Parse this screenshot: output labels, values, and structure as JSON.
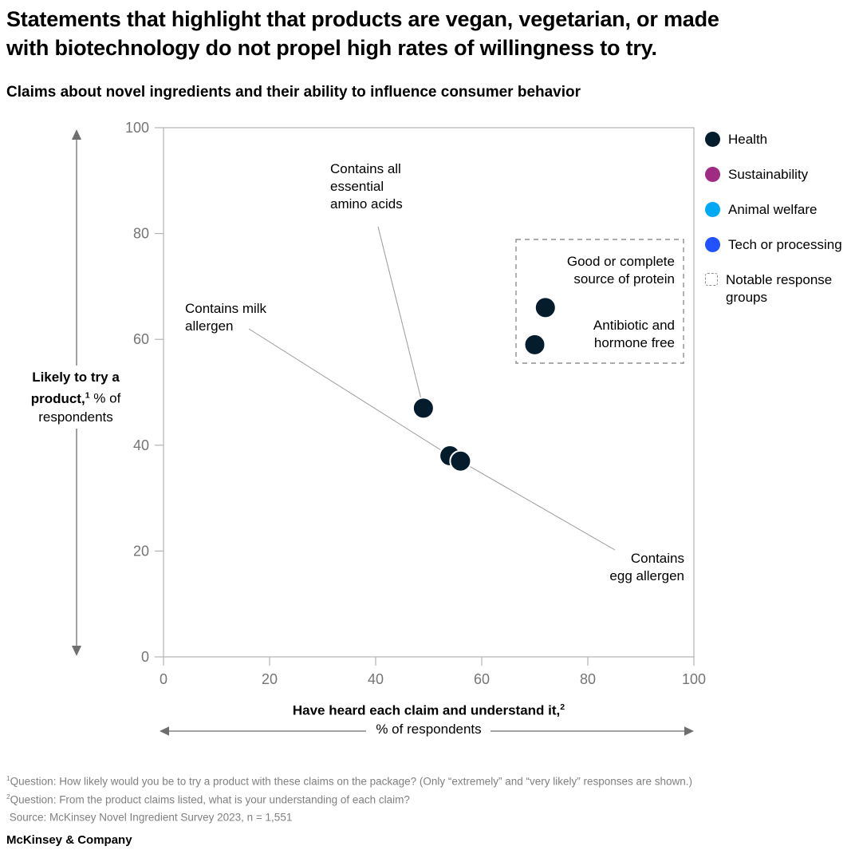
{
  "header": {
    "title": "Statements that highlight that products are vegan, vegetarian, or made\nwith biotechnology do not propel high rates of willingness to try.",
    "subtitle": "Claims about novel ingredients and their ability to influence consumer behavior"
  },
  "chart_data": {
    "type": "scatter",
    "xlabel": "Have heard each claim and understand it,",
    "xlabel_sup": "2",
    "xlabel_unit": "% of respondents",
    "ylabel": "Likely to try a product,",
    "ylabel_sup": "1",
    "ylabel_unit": " % of respondents",
    "xlim": [
      0,
      100
    ],
    "ylim": [
      0,
      100
    ],
    "x_ticks": [
      0,
      20,
      40,
      60,
      80,
      100
    ],
    "y_ticks": [
      0,
      20,
      40,
      60,
      80,
      100
    ],
    "grid": false,
    "legend_position": "right",
    "point_color": "#051c2c",
    "axis_color": "#b3b3b3",
    "tick_label_color": "#757575",
    "leader_line_color": "#9b9b9b",
    "arrow_color": "#6e6e6e",
    "notable_box_color": "#8f8f8f",
    "points": [
      {
        "label": "Contains all\nessential\namino acids",
        "category": "Health",
        "x": 49,
        "y": 47
      },
      {
        "label": "Contains milk\nallergen",
        "category": "Health",
        "x": 54,
        "y": 38
      },
      {
        "label": "Contains\negg allergen",
        "category": "Health",
        "x": 56,
        "y": 37
      },
      {
        "label": "Good or complete\nsource of protein",
        "category": "Health",
        "x": 72,
        "y": 66,
        "group": "notable"
      },
      {
        "label": "Antibiotic and\nhormone free",
        "category": "Health",
        "x": 70,
        "y": 59,
        "group": "notable"
      }
    ],
    "legend": [
      {
        "label": "Health",
        "color": "#051c2c",
        "type": "dot"
      },
      {
        "label": "Sustainability",
        "color": "#a02b82",
        "type": "dot"
      },
      {
        "label": "Animal welfare",
        "color": "#00a9f4",
        "type": "dot"
      },
      {
        "label": "Tech or processing",
        "color": "#2251ff",
        "type": "dot"
      },
      {
        "label": "Notable response\ngroups",
        "type": "dashed-box"
      }
    ]
  },
  "footnotes": [
    {
      "sup": "1",
      "text": "Question: How likely would you be to try a product with these claims on the package? (Only “extremely” and “very likely” responses are shown.)"
    },
    {
      "sup": "2",
      "text": "Question: From the product claims listed, what is your understanding of each claim?"
    },
    {
      "sup": "",
      "text": " Source: McKinsey Novel Ingredient Survey 2023, n = 1,551"
    }
  ],
  "brand": "McKinsey & Company"
}
